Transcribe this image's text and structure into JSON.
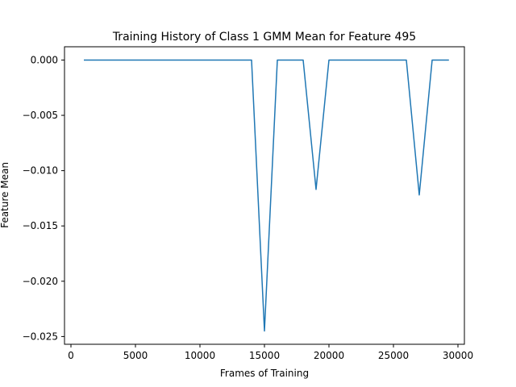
{
  "chart_data": {
    "type": "line",
    "title": "Training History of Class 1 GMM Mean for Feature 495",
    "xlabel": "Frames of Training",
    "ylabel": "Feature Mean",
    "xlim": [
      -500,
      30500
    ],
    "ylim": [
      -0.0257,
      0.0012
    ],
    "grid": false,
    "x_ticks": [
      0,
      5000,
      10000,
      15000,
      20000,
      25000,
      30000
    ],
    "x_tick_labels": [
      "0",
      "5000",
      "10000",
      "15000",
      "20000",
      "25000",
      "30000"
    ],
    "y_ticks": [
      0.0,
      -0.005,
      -0.01,
      -0.015,
      -0.02,
      -0.025
    ],
    "y_tick_labels": [
      "0.000",
      "−0.005",
      "−0.010",
      "−0.015",
      "−0.020",
      "−0.025"
    ],
    "series": [
      {
        "color": "#1f77b4",
        "x": [
          1000,
          2000,
          3000,
          4000,
          5000,
          6000,
          7000,
          8000,
          9000,
          10000,
          11000,
          12000,
          13000,
          14000,
          15000,
          16000,
          17000,
          18000,
          19000,
          20000,
          21000,
          22000,
          23000,
          24000,
          25000,
          26000,
          27000,
          28000,
          29000,
          29300
        ],
        "y": [
          0.0,
          0.0,
          0.0,
          0.0,
          0.0,
          0.0,
          0.0,
          0.0,
          0.0,
          0.0,
          0.0,
          0.0,
          0.0,
          0.0,
          -0.0245,
          0.0,
          0.0,
          0.0,
          -0.0117,
          0.0,
          0.0,
          0.0,
          0.0,
          0.0,
          0.0,
          0.0,
          -0.0122,
          0.0,
          0.0,
          0.0
        ]
      }
    ]
  }
}
